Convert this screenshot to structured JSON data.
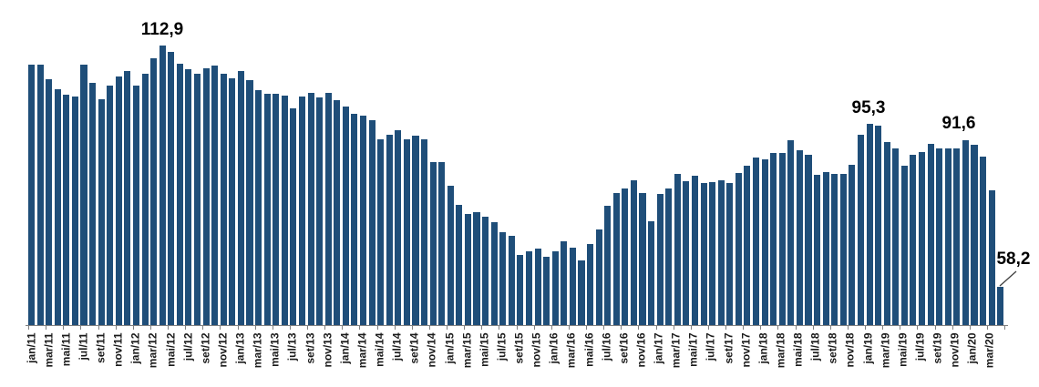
{
  "chart_data": {
    "type": "bar",
    "title": "",
    "xlabel": "",
    "ylabel": "",
    "grid": false,
    "legend": false,
    "bar_color": "#1F4E79",
    "axis_color": "#808080",
    "label_color": "#1a1a1a",
    "y_baseline": 49.6,
    "ylim": [
      49.6,
      115
    ],
    "decimal_separator": ",",
    "x": [
      "jan/11",
      "fev/11",
      "mar/11",
      "abr/11",
      "mai/11",
      "jun/11",
      "jul/11",
      "ago/11",
      "set/11",
      "out/11",
      "nov/11",
      "dez/11",
      "jan/12",
      "fev/12",
      "mar/12",
      "abr/12",
      "mai/12",
      "jun/12",
      "jul/12",
      "ago/12",
      "set/12",
      "out/12",
      "nov/12",
      "dez/12",
      "jan/13",
      "fev/13",
      "mar/13",
      "abr/13",
      "mai/13",
      "jun/13",
      "jul/13",
      "ago/13",
      "set/13",
      "out/13",
      "nov/13",
      "dez/13",
      "jan/14",
      "fev/14",
      "mar/14",
      "abr/14",
      "mai/14",
      "jun/14",
      "jul/14",
      "ago/14",
      "set/14",
      "out/14",
      "nov/14",
      "dez/14",
      "jan/15",
      "fev/15",
      "mar/15",
      "abr/15",
      "mai/15",
      "jun/15",
      "jul/15",
      "ago/15",
      "set/15",
      "out/15",
      "nov/15",
      "dez/15",
      "jan/16",
      "fev/16",
      "mar/16",
      "abr/16",
      "mai/16",
      "jun/16",
      "jul/16",
      "ago/16",
      "set/16",
      "out/16",
      "nov/16",
      "dez/16",
      "jan/17",
      "fev/17",
      "mar/17",
      "abr/17",
      "mai/17",
      "jun/17",
      "jul/17",
      "ago/17",
      "set/17",
      "out/17",
      "nov/17",
      "dez/17",
      "jan/18",
      "fev/18",
      "mar/18",
      "abr/18",
      "mai/18",
      "jun/18",
      "jul/18",
      "ago/18",
      "set/18",
      "out/18",
      "nov/18",
      "dez/18",
      "jan/19",
      "fev/19",
      "mar/19",
      "abr/19",
      "mai/19",
      "jun/19",
      "jul/19",
      "ago/19",
      "set/19",
      "out/19",
      "nov/19",
      "dez/19",
      "jan/20",
      "fev/20",
      "mar/20",
      "abr/20"
    ],
    "values": [
      108.7,
      108.7,
      105.4,
      103.1,
      101.9,
      101.4,
      108.6,
      104.5,
      100.7,
      103.8,
      106.0,
      107.2,
      103.9,
      106.5,
      110.1,
      112.9,
      111.5,
      108.9,
      107.5,
      106.6,
      107.7,
      108.4,
      106.5,
      105.6,
      107.1,
      105.2,
      102.9,
      102.0,
      102.0,
      101.7,
      98.7,
      101.5,
      102.3,
      101.2,
      102.3,
      100.6,
      99.1,
      97.4,
      97.1,
      96.1,
      91.7,
      92.7,
      93.8,
      91.7,
      92.5,
      91.8,
      86.5,
      86.5,
      81.1,
      76.8,
      74.7,
      75.1,
      74.2,
      72.9,
      70.6,
      69.9,
      65.4,
      66.4,
      67.0,
      65.0,
      66.3,
      68.6,
      67.1,
      64.3,
      67.9,
      71.3,
      76.7,
      79.6,
      80.5,
      82.5,
      79.6,
      73.2,
      79.3,
      80.5,
      83.9,
      82.2,
      83.4,
      81.7,
      82.0,
      82.5,
      81.7,
      84.1,
      85.8,
      87.6,
      87.1,
      88.6,
      88.6,
      91.6,
      89.2,
      88.3,
      83.7,
      84.3,
      83.9,
      83.9,
      85.9,
      92.7,
      95.3,
      94.7,
      91.0,
      89.7,
      85.8,
      88.2,
      88.9,
      90.6,
      89.7,
      89.7,
      89.7,
      91.6,
      90.5,
      87.8,
      80.2,
      58.2
    ],
    "x_tick_labels": [
      "jan/11",
      "mar/11",
      "mai/11",
      "jul/11",
      "set/11",
      "nov/11",
      "jan/12",
      "mar/12",
      "mai/12",
      "jul/12",
      "set/12",
      "nov/12",
      "jan/13",
      "mar/13",
      "mai/13",
      "jul/13",
      "set/13",
      "nov/13",
      "jan/14",
      "mar/14",
      "mai/14",
      "jul/14",
      "set/14",
      "nov/14",
      "jan/15",
      "mar/15",
      "mai/15",
      "jul/15",
      "set/15",
      "nov/15",
      "jan/16",
      "mar/16",
      "mai/16",
      "jul/16",
      "set/16",
      "nov/16",
      "jan/17",
      "mar/17",
      "mai/17",
      "jul/17",
      "set/17",
      "nov/17",
      "jan/18",
      "mar/18",
      "mai/18",
      "jul/18",
      "set/18",
      "nov/18",
      "jan/19",
      "mar/19",
      "mai/19",
      "jul/19",
      "set/19",
      "nov/19",
      "jan/20",
      "mar/20"
    ],
    "annotations": [
      {
        "text": "112,9",
        "month": "abr/12"
      },
      {
        "text": "95,3",
        "month": "jan/19"
      },
      {
        "text": "91,6",
        "month": "dez/19"
      },
      {
        "text": "58,2",
        "month": "abr/20",
        "leader_line": true
      }
    ]
  }
}
